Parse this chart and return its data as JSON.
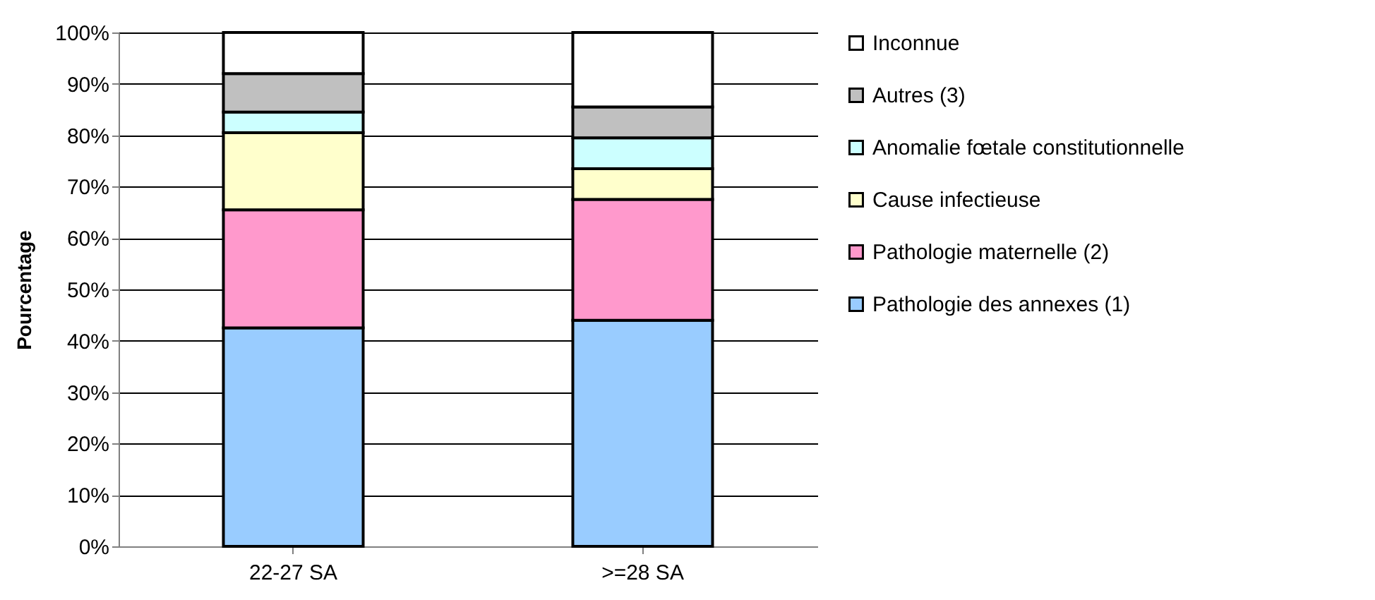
{
  "chart_data": {
    "type": "bar",
    "stacked": true,
    "ylabel": "Pourcentage",
    "categories": [
      "22-27 SA",
      ">=28 SA"
    ],
    "series": [
      {
        "name": "Pathologie des annexes (1)",
        "color": "#99ccff",
        "values": [
          42.5,
          44
        ]
      },
      {
        "name": "Pathologie maternelle (2)",
        "color": "#ff99cc",
        "values": [
          23,
          23.5
        ]
      },
      {
        "name": "Cause infectieuse",
        "color": "#ffffcc",
        "values": [
          15,
          6
        ]
      },
      {
        "name": "Anomalie fœtale constitutionnelle",
        "color": "#ccffff",
        "values": [
          4,
          6
        ]
      },
      {
        "name": "Autres (3)",
        "color": "#c0c0c0",
        "values": [
          7.5,
          6
        ]
      },
      {
        "name": "Inconnue",
        "color": "#ffffff",
        "values": [
          8,
          14.5
        ]
      }
    ],
    "ylim": [
      0,
      100
    ],
    "yticks": [
      {
        "value": 0,
        "label": "0%"
      },
      {
        "value": 10,
        "label": "10%"
      },
      {
        "value": 20,
        "label": "20%"
      },
      {
        "value": 30,
        "label": "30%"
      },
      {
        "value": 40,
        "label": "40%"
      },
      {
        "value": 50,
        "label": "50%"
      },
      {
        "value": 60,
        "label": "60%"
      },
      {
        "value": 70,
        "label": "70%"
      },
      {
        "value": 80,
        "label": "80%"
      },
      {
        "value": 90,
        "label": "90%"
      },
      {
        "value": 100,
        "label": "100%"
      }
    ],
    "grid": "y",
    "legend": "right"
  }
}
